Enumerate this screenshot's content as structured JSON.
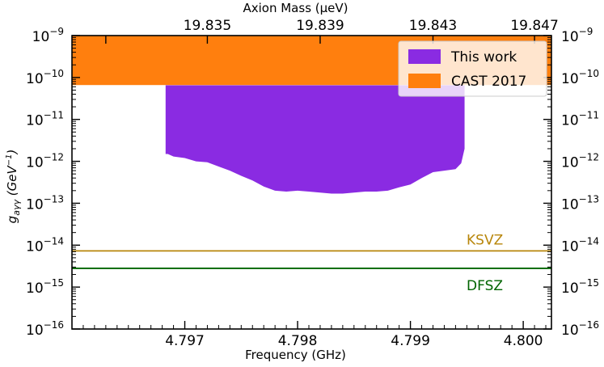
{
  "chart_data": {
    "type": "area",
    "xlabel": "Frequency (GHz)",
    "xlabel_top": "Axion Mass (μeV)",
    "ylabel_main": "g",
    "ylabel_sub": "aγγ",
    "ylabel_unit_open": " (GeV",
    "ylabel_unit_sup": "−1",
    "ylabel_unit_close": ")",
    "xlim": [
      4.796,
      4.80025
    ],
    "ylim_log10": [
      -16,
      -9
    ],
    "yscale": "log",
    "x_ticks": [
      4.797,
      4.798,
      4.799,
      4.8
    ],
    "x_tick_labels": [
      "4.797",
      "4.798",
      "4.799",
      "4.800"
    ],
    "top_ticks": [
      4.7963,
      4.7972,
      4.7982,
      4.7992,
      4.8001
    ],
    "top_tick_labels": [
      "19.835",
      "19.839",
      "19.843",
      "19.847"
    ],
    "top_tick_label_positions": [
      4.7972,
      4.7982,
      4.7992,
      4.8001
    ],
    "y_ticks_exp": [
      -16,
      -15,
      -14,
      -13,
      -12,
      -11,
      -10,
      -9
    ],
    "y_tick_labels": [
      "10",
      "10",
      "10",
      "10",
      "10",
      "10",
      "10",
      "10"
    ],
    "y_tick_sups": [
      "−16",
      "−15",
      "−14",
      "−13",
      "−12",
      "−11",
      "−10",
      "−9"
    ],
    "legend_position": "top-right",
    "series": [
      {
        "name": "This work",
        "color": "#8a2be2",
        "x": [
          4.79683,
          4.79685,
          4.7969,
          4.797,
          4.7971,
          4.7972,
          4.7973,
          4.7974,
          4.7975,
          4.7976,
          4.7977,
          4.7978,
          4.7979,
          4.798,
          4.7981,
          4.7982,
          4.7983,
          4.7984,
          4.7985,
          4.7986,
          4.7987,
          4.7988,
          4.7989,
          4.799,
          4.7991,
          4.7992,
          4.7993,
          4.7994,
          4.79945,
          4.79948,
          4.79948
        ],
        "y_lower": [
          1.5e-12,
          1.5e-12,
          1.3e-12,
          1.2e-12,
          1e-12,
          9.5e-13,
          7.5e-13,
          6e-13,
          4.5e-13,
          3.5e-13,
          2.5e-13,
          2e-13,
          1.9e-13,
          2e-13,
          1.9e-13,
          1.8e-13,
          1.7e-13,
          1.7e-13,
          1.8e-13,
          1.9e-13,
          1.9e-13,
          2e-13,
          2.4e-13,
          2.8e-13,
          4e-13,
          5.5e-13,
          6e-13,
          6.5e-13,
          9e-13,
          2e-12,
          2.2e-12
        ],
        "y_upper": 6.5e-11
      },
      {
        "name": "CAST 2017",
        "color": "#ff7f0e",
        "y_lower": 6.6e-11,
        "y_upper": 1e-09
      }
    ],
    "reference_lines": [
      {
        "name": "KSVZ",
        "value": 7.3e-15,
        "color": "#b8860b",
        "label_color": "#b8860b"
      },
      {
        "name": "DFSZ",
        "value": 2.8e-15,
        "color": "#006400",
        "label_color": "#006400"
      }
    ],
    "grid": false
  }
}
